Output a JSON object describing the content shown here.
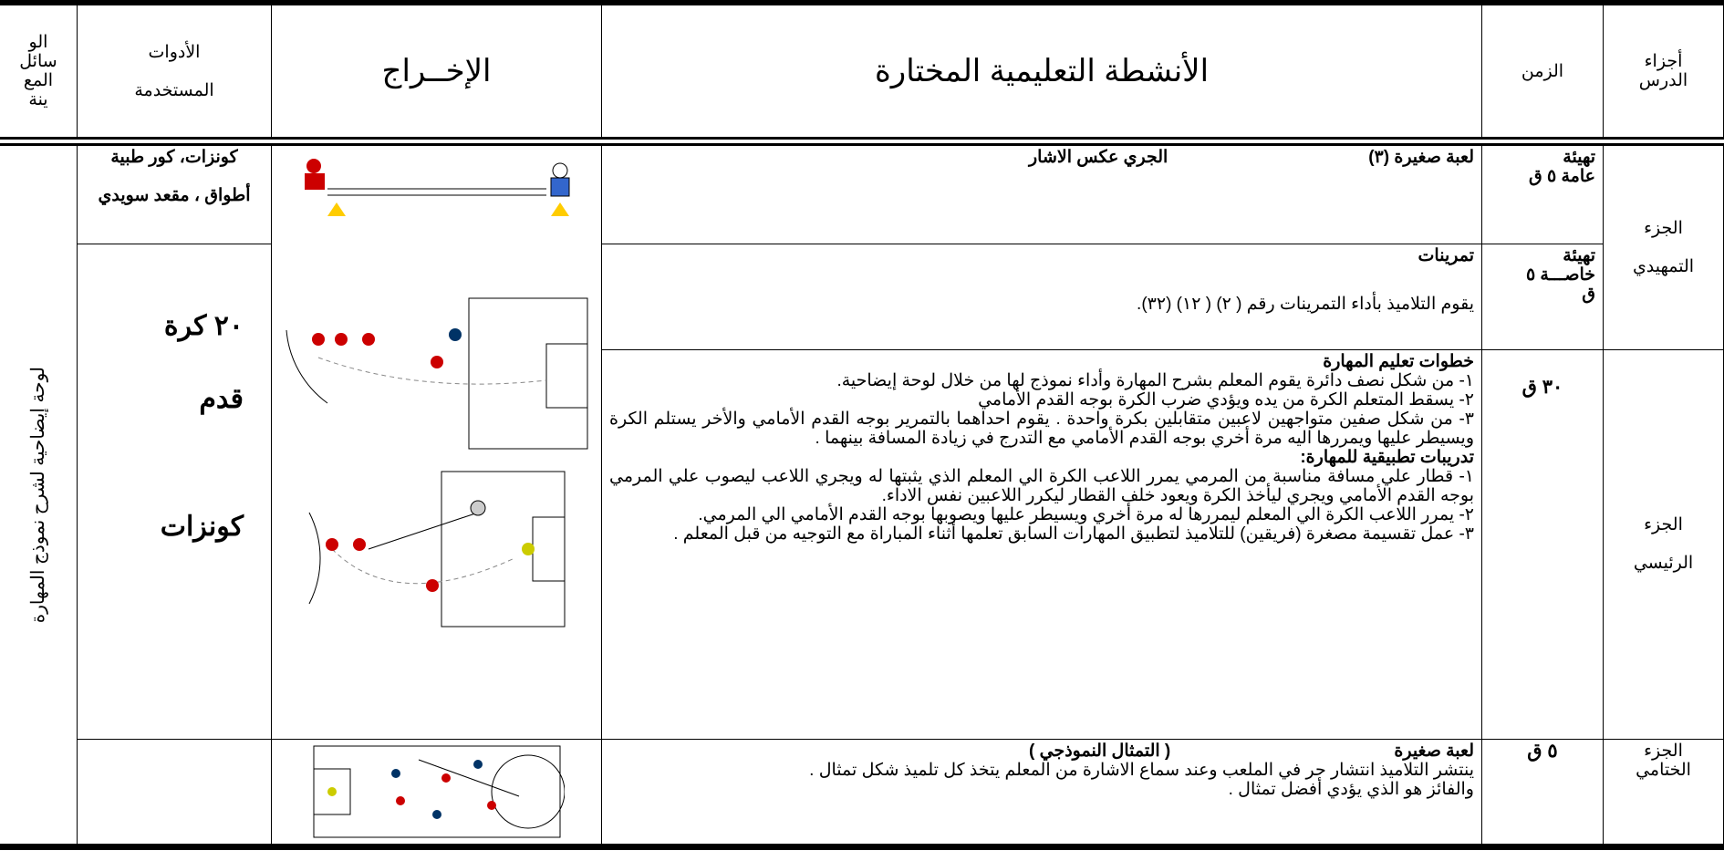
{
  "header": {
    "parts": [
      "أجزاء",
      "الدرس"
    ],
    "time": "الزمن",
    "activities": "الأنشطة التعليمية المختارة",
    "output": "الإخــراج",
    "tools": [
      "الأدوات",
      "المستخدمة"
    ],
    "aids": [
      "الو",
      "سائل",
      "المع",
      "ينة"
    ]
  },
  "rows": [
    {
      "part": [
        "الجزء",
        "التمهيدي"
      ],
      "time": [
        "تهيئة",
        "عامة ٥ ق"
      ],
      "title": "لعبة صغيرة (٣)",
      "subtitle": "الجري عكس الاشار",
      "tools": [
        "كونزات، كور طبية",
        "أطواق ، مقعد سويدي"
      ]
    },
    {
      "time": [
        "تهيئة",
        "خاصـــة ٥",
        "ق"
      ],
      "title": "تمرينات",
      "text": "يقوم التلاميذ بأداء التمرينات رقم ( ٢) ( ١٢) (٣٢).",
      "tools": [
        "٢٠ كرة",
        "قدم",
        "كونزات"
      ]
    },
    {
      "part": [
        "الجزء",
        "الرئيسي"
      ],
      "time": "٣٠ ق",
      "heading1": "خطوات تعليم المهارة",
      "steps": [
        "١- من شكل نصف دائرة يقوم المعلم بشرح المهارة وأداء نموذج لها من خلال لوحة إيضاحية.",
        "٢- يسقط المتعلم الكرة من يده ويؤدي ضرب الكرة بوجه القدم الأمامي",
        "٣- من شكل صفين متواجهين لاعبين متقابلين بكرة واحدة . يقوم احداهما بالتمرير بوجه القدم الأمامي والأخر يستلم الكرة ويسيطر عليها ويمررها اليه مرة أخري بوجه القدم الأمامي مع التدرج في زيادة المسافة بينهما ."
      ],
      "heading2": "تدريبات تطبيقية للمهارة:",
      "drills": [
        "١- قطار علي مسافة مناسبة من المرمي يمرر اللاعب الكرة الي المعلم الذي يثبتها له ويجري اللاعب ليصوب علي المرمي بوجه القدم الأمامي ويجري ليأخذ الكرة ويعود خلف القطار ليكرر اللاعبين نفس الاداء.",
        "٢- يمرر اللاعب الكرة الي المعلم ليمررها له مرة أخري ويسيطر عليها ويصوبها بوجه القدم الأمامي الي المرمي.",
        "٣- عمل تقسيمة مصغرة (فريقين) للتلاميذ لتطبيق المهارات السابق تعلمها أثناء المباراة مع التوجيه من قبل المعلم ."
      ]
    },
    {
      "part": [
        "الجزء",
        "الختامي"
      ],
      "time": "٥ ق",
      "title": "لعبة صغيرة",
      "subtitle": "( التمثال النموذجي )",
      "lines": [
        "ينتشر التلاميذ انتشار حر في الملعب وعند سماع الاشارة من المعلم يتخذ كل تلميذ شكل تمثال .",
        "والفائز هو الذي يؤدي أفضل تمثال ."
      ]
    }
  ],
  "aid": "لوحة إيضاحية لشرح نموذج المهارة"
}
